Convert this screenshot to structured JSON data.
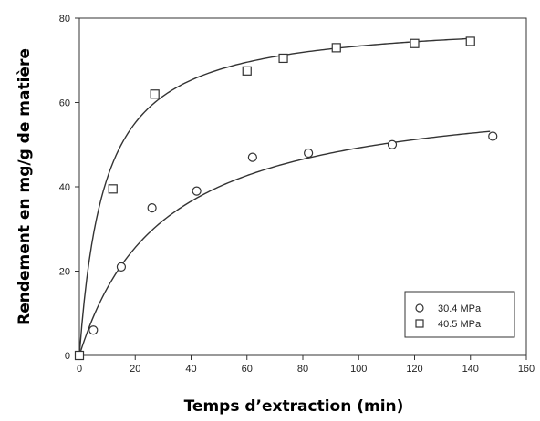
{
  "chart_data": {
    "type": "scatter",
    "xlabel": "Temps d’extraction (min)",
    "ylabel": "Rendement en  mg/g de matière",
    "xlim": [
      0,
      160
    ],
    "ylim": [
      0,
      80
    ],
    "xticks": [
      0,
      20,
      40,
      60,
      80,
      100,
      120,
      140,
      160
    ],
    "yticks": [
      0,
      20,
      40,
      60,
      80
    ],
    "grid": false,
    "legend_position": "bottom-right",
    "series": [
      {
        "name": "30.4 MPa",
        "marker": "circle",
        "points": [
          [
            0,
            0
          ],
          [
            5,
            6
          ],
          [
            15,
            21
          ],
          [
            26,
            35
          ],
          [
            42,
            39
          ],
          [
            62,
            47
          ],
          [
            82,
            48
          ],
          [
            112,
            50
          ],
          [
            148,
            52
          ]
        ],
        "fit": {
          "model": "hyperbolic",
          "ymax": 64,
          "k": 30,
          "x_range": [
            0,
            147
          ]
        }
      },
      {
        "name": "40.5 MPa",
        "marker": "square",
        "points": [
          [
            0,
            0
          ],
          [
            12,
            39.5
          ],
          [
            27,
            62
          ],
          [
            60,
            67.5
          ],
          [
            73,
            70.5
          ],
          [
            92,
            73
          ],
          [
            120,
            74
          ],
          [
            140,
            74.5
          ]
        ],
        "fit": {
          "model": "hyperbolic",
          "ymax": 80,
          "k": 9,
          "x_range": [
            0,
            140
          ]
        }
      }
    ]
  }
}
